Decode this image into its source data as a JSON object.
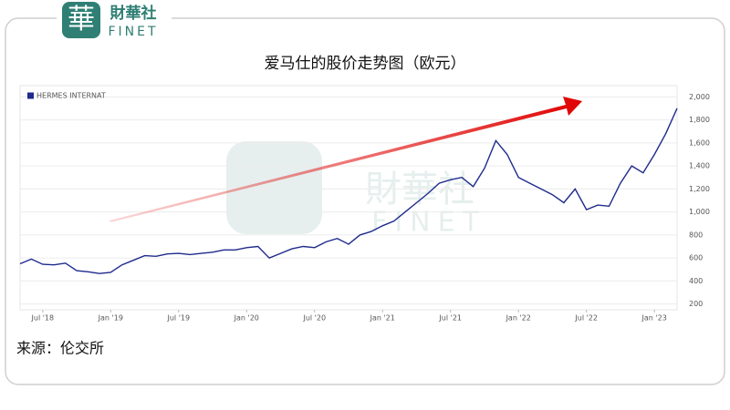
{
  "branding": {
    "icon": "華",
    "name": "財華社",
    "en": "FINET"
  },
  "chart_data": {
    "type": "line",
    "title": "爱马仕的股价走势图（欧元）",
    "source": "来源：伦交所",
    "x": [
      "2018-05",
      "2018-06",
      "2018-07",
      "2018-08",
      "2018-09",
      "2018-10",
      "2018-11",
      "2018-12",
      "2019-01",
      "2019-02",
      "2019-03",
      "2019-04",
      "2019-05",
      "2019-06",
      "2019-07",
      "2019-08",
      "2019-09",
      "2019-10",
      "2019-11",
      "2019-12",
      "2020-01",
      "2020-02",
      "2020-03",
      "2020-04",
      "2020-05",
      "2020-06",
      "2020-07",
      "2020-08",
      "2020-09",
      "2020-10",
      "2020-11",
      "2020-12",
      "2021-01",
      "2021-02",
      "2021-03",
      "2021-04",
      "2021-05",
      "2021-06",
      "2021-07",
      "2021-08",
      "2021-09",
      "2021-10",
      "2021-11",
      "2021-12",
      "2022-01",
      "2022-02",
      "2022-03",
      "2022-04",
      "2022-05",
      "2022-06",
      "2022-07",
      "2022-08",
      "2022-09",
      "2022-10",
      "2022-11",
      "2022-12",
      "2023-01",
      "2023-02",
      "2023-03"
    ],
    "series": [
      {
        "name": "HERMES INTERNAT",
        "color": "#1f2a8c",
        "values": [
          550,
          590,
          545,
          540,
          555,
          490,
          480,
          465,
          475,
          540,
          580,
          620,
          615,
          635,
          640,
          630,
          640,
          650,
          670,
          670,
          690,
          700,
          600,
          640,
          680,
          700,
          690,
          740,
          770,
          720,
          800,
          830,
          880,
          920,
          1000,
          1080,
          1160,
          1250,
          1280,
          1300,
          1220,
          1380,
          1620,
          1500,
          1300,
          1250,
          1200,
          1150,
          1080,
          1200,
          1020,
          1060,
          1050,
          1250,
          1400,
          1340,
          1500,
          1680,
          1900
        ]
      }
    ],
    "xlim": [
      "2018-05",
      "2023-03"
    ],
    "xticks": [
      {
        "value": "2018-07",
        "label": "Jul '18"
      },
      {
        "value": "2019-01",
        "label": "Jan '19"
      },
      {
        "value": "2019-07",
        "label": "Jul '19"
      },
      {
        "value": "2020-01",
        "label": "Jan '20"
      },
      {
        "value": "2020-07",
        "label": "Jul '20"
      },
      {
        "value": "2021-01",
        "label": "Jan '21"
      },
      {
        "value": "2021-07",
        "label": "Jul '21"
      },
      {
        "value": "2022-01",
        "label": "Jan '22"
      },
      {
        "value": "2022-07",
        "label": "Jul '22"
      },
      {
        "value": "2023-01",
        "label": "Jan '23"
      }
    ],
    "ylim": [
      150,
      2050
    ],
    "yticks": [
      200,
      400,
      600,
      800,
      {
        "value": 1000,
        "label": "1,000"
      },
      {
        "value": 1200,
        "label": "1,200"
      },
      {
        "value": 1400,
        "label": "1,400"
      },
      {
        "value": 1600,
        "label": "1,600"
      },
      {
        "value": 1800,
        "label": "1,800"
      },
      {
        "value": 2000,
        "label": "2,000"
      }
    ],
    "grid": true,
    "legend": "top-left"
  }
}
